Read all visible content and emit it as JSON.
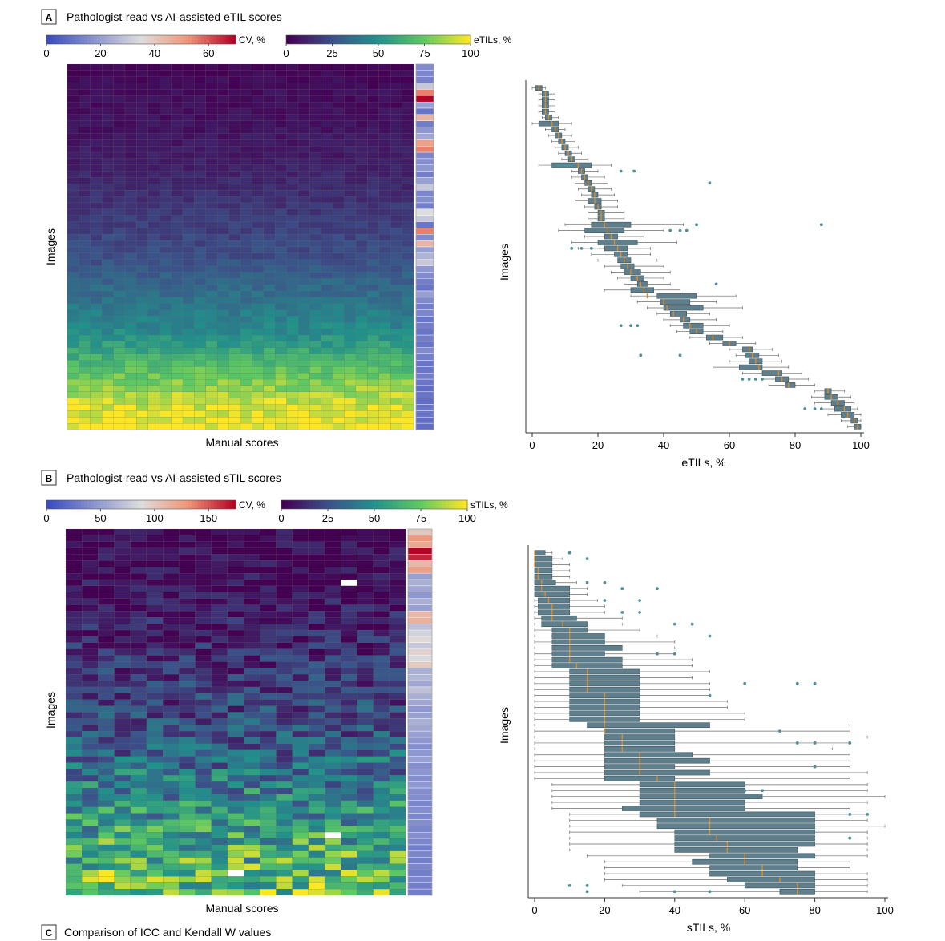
{
  "panels": [
    {
      "letter": "A",
      "title": "Pathologist-read vs AI-assisted eTIL scores"
    },
    {
      "letter": "B",
      "title": "Pathologist-read vs AI-assisted sTIL scores"
    },
    {
      "letter": "C",
      "title": "Comparison of ICC and Kendall W values"
    }
  ],
  "colors": {
    "box_fill": "#5f7f8c",
    "box_edge": "#3d5560",
    "median": "#e08a1e",
    "outlier": "#4f8f9a",
    "cell_border": "#7f7f5a"
  },
  "chart_data": [
    {
      "type": "heatmap",
      "panel": "A",
      "xlabel": "Manual scores",
      "ylabel": "Images",
      "n_rows": 58,
      "n_cols": 30,
      "value_colorbar": {
        "label": "eTILs, %",
        "ticks": [
          "0",
          "25",
          "50",
          "75",
          "100"
        ],
        "range": [
          0,
          100
        ],
        "colormap": "viridis"
      },
      "cv_colorbar": {
        "label": "CV, %",
        "ticks": [
          "0",
          "20",
          "40",
          "60"
        ],
        "range": [
          0,
          70
        ],
        "colormap": "coolwarm"
      },
      "row_mean_values": [
        1,
        2,
        3,
        3,
        4,
        4,
        4,
        5,
        5,
        6,
        6,
        7,
        7,
        8,
        8,
        9,
        10,
        11,
        12,
        13,
        14,
        15,
        16,
        17,
        18,
        19,
        20,
        21,
        22,
        23,
        24,
        26,
        28,
        30,
        32,
        34,
        36,
        38,
        40,
        42,
        44,
        46,
        48,
        52,
        56,
        60,
        64,
        68,
        72,
        76,
        80,
        84,
        88,
        91,
        93,
        95,
        97,
        99
      ],
      "cv_values": [
        15,
        14,
        13,
        30,
        55,
        70,
        20,
        10,
        45,
        12,
        18,
        22,
        50,
        55,
        14,
        16,
        18,
        12,
        20,
        30,
        14,
        16,
        12,
        35,
        30,
        10,
        55,
        15,
        45,
        20,
        25,
        30,
        18,
        15,
        12,
        10,
        20,
        15,
        12,
        14,
        10,
        12,
        10,
        12,
        10,
        15,
        12,
        10,
        10,
        12,
        10,
        8,
        10,
        8,
        10,
        10,
        8,
        8
      ]
    },
    {
      "type": "boxplot",
      "panel": "A",
      "orientation": "horizontal",
      "xlabel": "eTILs, %",
      "ylabel": "Images",
      "xlim": [
        0,
        100
      ],
      "xticks": [
        0,
        20,
        40,
        60,
        80,
        100
      ],
      "medians": [
        2,
        4,
        4,
        4,
        4,
        5,
        6,
        7,
        8,
        9,
        10,
        11,
        12,
        14,
        15,
        16,
        17,
        18,
        19,
        19,
        20,
        21,
        21,
        22,
        23,
        24,
        25,
        26,
        27,
        28,
        29,
        30,
        32,
        33,
        34,
        35,
        40,
        41,
        43,
        46,
        48,
        50,
        55,
        60,
        66,
        67,
        68,
        69,
        75,
        76,
        78,
        90,
        91,
        93,
        95,
        96,
        98,
        99
      ],
      "q1": [
        1,
        3,
        3,
        3,
        3,
        4,
        2,
        6,
        7,
        8,
        9,
        10,
        11,
        6,
        14,
        15,
        16,
        17,
        18,
        17,
        19,
        20,
        20,
        18,
        16,
        22,
        20,
        22,
        25,
        26,
        27,
        28,
        30,
        32,
        30,
        38,
        39,
        40,
        42,
        45,
        46,
        48,
        53,
        58,
        64,
        65,
        66,
        63,
        70,
        74,
        77,
        89,
        89,
        91,
        92,
        94,
        97,
        98
      ],
      "q3": [
        3,
        5,
        5,
        5,
        5,
        6,
        8,
        8,
        9,
        10,
        11,
        12,
        13,
        18,
        16,
        17,
        18,
        19,
        20,
        21,
        21,
        22,
        22,
        30,
        28,
        26,
        32,
        29,
        29,
        30,
        31,
        33,
        34,
        35,
        37,
        50,
        48,
        52,
        47,
        48,
        52,
        52,
        58,
        62,
        67,
        69,
        70,
        70,
        76,
        78,
        80,
        91,
        93,
        95,
        97,
        98,
        99,
        100
      ],
      "whisker_lo": [
        0,
        2,
        2,
        2,
        2,
        3,
        0,
        4,
        5,
        6,
        7,
        8,
        9,
        2,
        12,
        12,
        13,
        14,
        15,
        13,
        16,
        17,
        17,
        10,
        8,
        16,
        12,
        14,
        18,
        20,
        22,
        24,
        26,
        28,
        22,
        30,
        32,
        35,
        38,
        40,
        42,
        44,
        48,
        54,
        60,
        62,
        60,
        55,
        64,
        70,
        72,
        86,
        85,
        86,
        88,
        90,
        94,
        96
      ],
      "whisker_hi": [
        4,
        7,
        7,
        7,
        7,
        8,
        12,
        10,
        12,
        13,
        14,
        15,
        17,
        24,
        20,
        22,
        23,
        24,
        25,
        26,
        26,
        28,
        28,
        46,
        40,
        34,
        44,
        36,
        36,
        38,
        40,
        42,
        40,
        42,
        45,
        62,
        56,
        64,
        54,
        56,
        60,
        58,
        64,
        68,
        73,
        75,
        76,
        78,
        82,
        84,
        86,
        95,
        97,
        98,
        99,
        100,
        100,
        100
      ],
      "outliers": [
        {
          "row": 13,
          "values": [
            8,
            9,
            10,
            11,
            12
          ]
        },
        {
          "row": 14,
          "values": [
            27,
            31
          ]
        },
        {
          "row": 16,
          "values": [
            54
          ]
        },
        {
          "row": 23,
          "values": [
            50,
            88
          ]
        },
        {
          "row": 24,
          "values": [
            42,
            45,
            47
          ]
        },
        {
          "row": 27,
          "values": [
            12,
            15,
            18
          ]
        },
        {
          "row": 33,
          "values": [
            56
          ]
        },
        {
          "row": 40,
          "values": [
            27,
            30,
            32
          ]
        },
        {
          "row": 45,
          "values": [
            33,
            45
          ]
        },
        {
          "row": 49,
          "values": [
            64,
            66,
            68,
            70
          ]
        },
        {
          "row": 54,
          "values": [
            83,
            86,
            88
          ]
        }
      ]
    },
    {
      "type": "heatmap",
      "panel": "B",
      "xlabel": "Manual scores",
      "ylabel": "Images",
      "n_rows": 58,
      "n_cols": 21,
      "value_colorbar": {
        "label": "sTILs, %",
        "ticks": [
          "0",
          "25",
          "50",
          "75",
          "100"
        ],
        "range": [
          0,
          100
        ],
        "colormap": "viridis"
      },
      "cv_colorbar": {
        "label": "CV, %",
        "ticks": [
          "0",
          "50",
          "100",
          "150"
        ],
        "range": [
          0,
          175
        ],
        "colormap": "coolwarm"
      },
      "row_mean_values": [
        1,
        1,
        2,
        2,
        2,
        3,
        3,
        4,
        4,
        5,
        5,
        6,
        7,
        8,
        9,
        10,
        10,
        11,
        12,
        13,
        14,
        15,
        16,
        17,
        18,
        19,
        20,
        20,
        21,
        22,
        24,
        25,
        26,
        28,
        30,
        32,
        34,
        36,
        38,
        40,
        42,
        44,
        46,
        48,
        50,
        52,
        54,
        56,
        58,
        60,
        62,
        64,
        66,
        68,
        70,
        72,
        74,
        75
      ],
      "cv_values": [
        100,
        130,
        120,
        175,
        165,
        110,
        125,
        50,
        60,
        55,
        45,
        60,
        50,
        110,
        115,
        70,
        80,
        90,
        75,
        95,
        85,
        100,
        60,
        65,
        55,
        70,
        60,
        55,
        45,
        50,
        60,
        55,
        50,
        45,
        40,
        45,
        50,
        40,
        45,
        40,
        45,
        40,
        40,
        35,
        40,
        35,
        40,
        35,
        40,
        35,
        30,
        35,
        30,
        35,
        30,
        35,
        30,
        30
      ],
      "missing_cells": [
        {
          "row": 8,
          "col": 17
        },
        {
          "row": 48,
          "col": 16
        },
        {
          "row": 54,
          "col": 10
        }
      ]
    },
    {
      "type": "boxplot",
      "panel": "B",
      "orientation": "horizontal",
      "xlabel": "sTILs, %",
      "ylabel": "Images",
      "xlim": [
        0,
        100
      ],
      "xticks": [
        0,
        20,
        40,
        60,
        80,
        100
      ],
      "medians": [
        0,
        0,
        0,
        1,
        1,
        2,
        2,
        3,
        4,
        5,
        5,
        5,
        8,
        10,
        10,
        10,
        10,
        10,
        10,
        12,
        15,
        15,
        15,
        15,
        20,
        20,
        20,
        20,
        20,
        20,
        20,
        25,
        25,
        25,
        30,
        30,
        30,
        30,
        35,
        40,
        40,
        40,
        40,
        40,
        40,
        50,
        50,
        50,
        52,
        55,
        55,
        60,
        60,
        65,
        65,
        70,
        75,
        75
      ],
      "q1": [
        0,
        0,
        0,
        0,
        0,
        0,
        0,
        0,
        1,
        1,
        1,
        2,
        2,
        5,
        5,
        5,
        5,
        5,
        5,
        5,
        10,
        10,
        10,
        10,
        10,
        10,
        10,
        10,
        10,
        15,
        20,
        20,
        20,
        20,
        20,
        20,
        20,
        20,
        20,
        30,
        30,
        30,
        30,
        25,
        30,
        35,
        35,
        40,
        40,
        40,
        40,
        50,
        45,
        50,
        50,
        55,
        60,
        70
      ],
      "q3": [
        3,
        5,
        5,
        5,
        5,
        6,
        10,
        10,
        10,
        10,
        10,
        12,
        15,
        15,
        20,
        20,
        25,
        20,
        25,
        25,
        30,
        30,
        30,
        30,
        30,
        30,
        30,
        30,
        30,
        50,
        40,
        40,
        40,
        40,
        45,
        50,
        40,
        50,
        40,
        60,
        60,
        65,
        60,
        60,
        80,
        80,
        80,
        80,
        80,
        80,
        75,
        80,
        75,
        75,
        80,
        80,
        80,
        80
      ],
      "whisker_lo": [
        0,
        0,
        0,
        0,
        0,
        0,
        0,
        0,
        0,
        0,
        0,
        0,
        0,
        0,
        0,
        0,
        0,
        0,
        0,
        0,
        0,
        0,
        0,
        0,
        0,
        0,
        0,
        0,
        0,
        0,
        0,
        0,
        0,
        0,
        0,
        0,
        0,
        0,
        0,
        5,
        5,
        5,
        5,
        5,
        10,
        10,
        10,
        10,
        10,
        10,
        10,
        15,
        20,
        20,
        20,
        20,
        25,
        30
      ],
      "whisker_hi": [
        5,
        8,
        10,
        10,
        10,
        12,
        15,
        15,
        18,
        20,
        20,
        25,
        25,
        30,
        35,
        40,
        40,
        40,
        45,
        45,
        50,
        45,
        50,
        50,
        50,
        55,
        55,
        60,
        60,
        90,
        90,
        95,
        90,
        85,
        90,
        90,
        90,
        95,
        90,
        95,
        95,
        100,
        95,
        90,
        95,
        95,
        100,
        95,
        95,
        95,
        95,
        95,
        90,
        90,
        95,
        95,
        95,
        95
      ],
      "outliers": [
        {
          "row": 0,
          "values": [
            10
          ]
        },
        {
          "row": 1,
          "values": [
            15
          ]
        },
        {
          "row": 5,
          "values": [
            15,
            20
          ]
        },
        {
          "row": 6,
          "values": [
            25,
            35
          ]
        },
        {
          "row": 8,
          "values": [
            20,
            30
          ]
        },
        {
          "row": 10,
          "values": [
            25,
            30
          ]
        },
        {
          "row": 12,
          "values": [
            40,
            45
          ]
        },
        {
          "row": 14,
          "values": [
            50
          ]
        },
        {
          "row": 17,
          "values": [
            35,
            40
          ]
        },
        {
          "row": 22,
          "values": [
            60,
            75,
            80
          ]
        },
        {
          "row": 24,
          "values": [
            50
          ]
        },
        {
          "row": 30,
          "values": [
            70
          ]
        },
        {
          "row": 32,
          "values": [
            75,
            80,
            90
          ]
        },
        {
          "row": 36,
          "values": [
            80
          ]
        },
        {
          "row": 40,
          "values": [
            60,
            65
          ]
        },
        {
          "row": 44,
          "values": [
            90,
            95
          ]
        },
        {
          "row": 48,
          "values": [
            90
          ]
        },
        {
          "row": 56,
          "values": [
            10,
            15
          ]
        },
        {
          "row": 57,
          "values": [
            15,
            40,
            50
          ]
        }
      ]
    }
  ]
}
